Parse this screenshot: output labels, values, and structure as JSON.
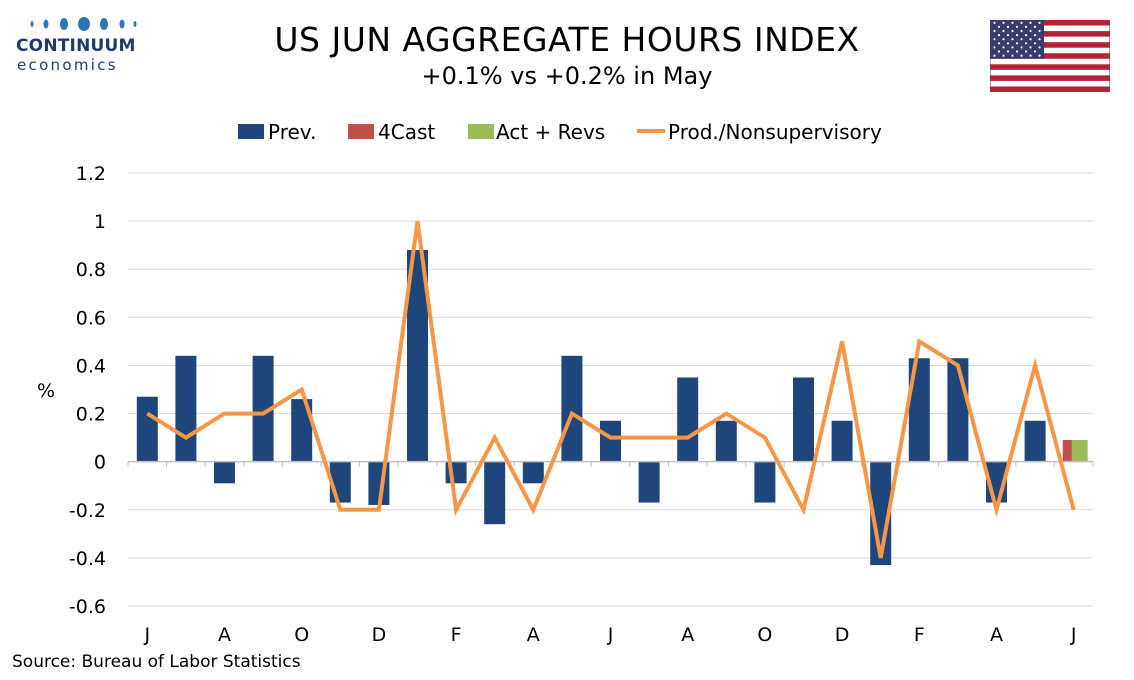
{
  "logo": {
    "brand": "CONTINUUM",
    "sub": "economics"
  },
  "title": "US JUN AGGREGATE HOURS INDEX",
  "subtitle": "+0.1% vs +0.2% in May",
  "source": "Source: Bureau of Labor Statistics",
  "colors": {
    "prev": "#1f467a",
    "fcast": "#c0504d",
    "act": "#9bbb59",
    "line": "#f79646",
    "grid": "#d9d9d9"
  },
  "chart_data": {
    "type": "bar",
    "ylabel": "%",
    "ylim": [
      -0.6,
      1.2
    ],
    "yticks": [
      "1.2",
      "1",
      "0.8",
      "0.6",
      "0.4",
      "0.2",
      "0",
      "-0.2",
      "-0.4",
      "-0.6"
    ],
    "x_tick_labels": [
      "J",
      "A",
      "O",
      "D",
      "F",
      "A",
      "J",
      "A",
      "O",
      "D",
      "F",
      "A",
      "J"
    ],
    "legend": [
      "Prev.",
      "4Cast",
      "Act + Revs",
      "Prod./Nonsupervisory"
    ],
    "legend_position": "top",
    "grid": true,
    "series": [
      {
        "name": "Prev.",
        "type": "bar",
        "values": [
          0.27,
          0.44,
          -0.09,
          0.44,
          0.26,
          -0.17,
          -0.18,
          0.88,
          -0.09,
          -0.26,
          -0.09,
          0.44,
          0.17,
          -0.17,
          0.35,
          0.17,
          -0.17,
          0.35,
          0.17,
          -0.43,
          0.43,
          0.43,
          -0.17,
          0.17,
          null
        ]
      },
      {
        "name": "4Cast",
        "type": "bar",
        "values": [
          null,
          null,
          null,
          null,
          null,
          null,
          null,
          null,
          null,
          null,
          null,
          null,
          null,
          null,
          null,
          null,
          null,
          null,
          null,
          null,
          null,
          null,
          null,
          null,
          0.09
        ]
      },
      {
        "name": "Act + Revs",
        "type": "bar",
        "values": [
          null,
          null,
          null,
          null,
          null,
          null,
          null,
          null,
          null,
          null,
          null,
          null,
          null,
          null,
          null,
          null,
          null,
          null,
          null,
          null,
          null,
          null,
          null,
          null,
          0.09
        ]
      },
      {
        "name": "Prod./Nonsupervisory",
        "type": "line",
        "values": [
          0.2,
          0.1,
          0.2,
          0.2,
          0.3,
          -0.2,
          -0.2,
          1.0,
          -0.2,
          0.1,
          -0.2,
          0.2,
          0.1,
          0.1,
          0.1,
          0.2,
          0.1,
          -0.2,
          0.5,
          -0.4,
          0.5,
          0.4,
          -0.2,
          0.4,
          -0.2
        ]
      }
    ]
  }
}
